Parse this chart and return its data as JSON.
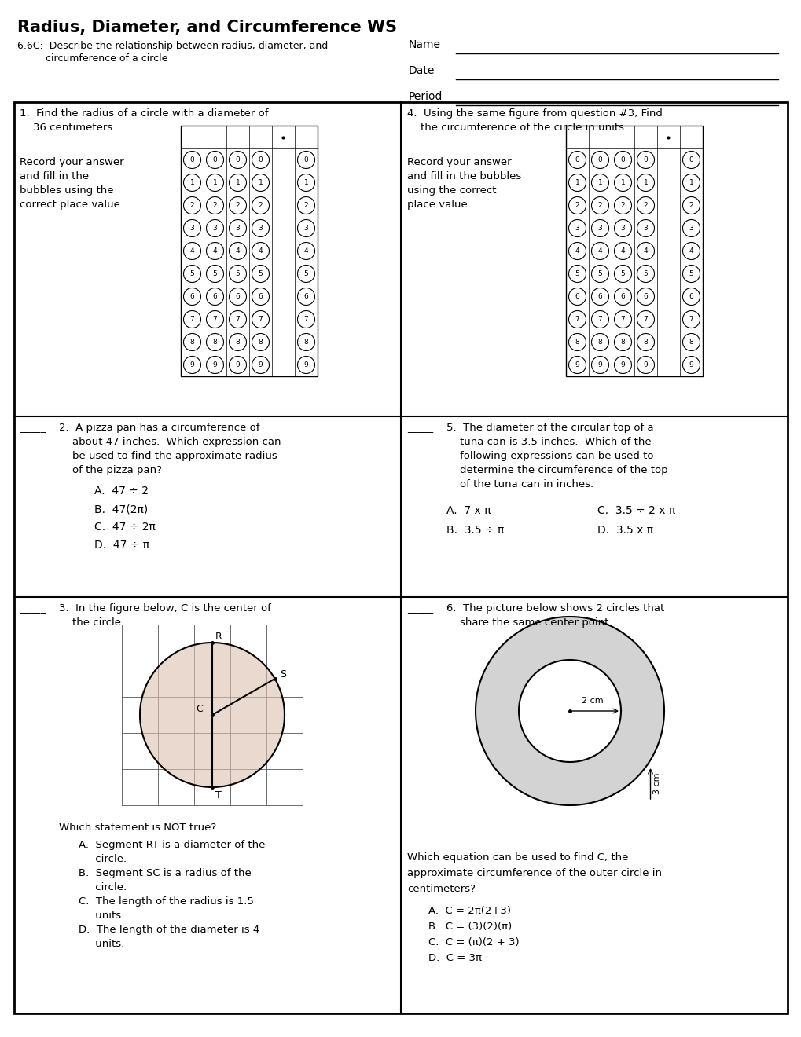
{
  "title": "Radius, Diameter, and Circumference WS",
  "subtitle_line1": "6.6C:  Describe the relationship between radius, diameter, and",
  "subtitle_line2": "         circumference of a circle",
  "bg_color": "#ffffff",
  "q1_line1": "1.  Find the radius of a circle with a diameter of",
  "q1_line2": "    36 centimeters.",
  "q1_line3": "Record your answer",
  "q1_line4": "and fill in the",
  "q1_line5": "bubbles using the",
  "q1_line6": "correct place value.",
  "q2_blank": "_____",
  "q2_line1": "2.  A pizza pan has a circumference of",
  "q2_line2": "    about 47 inches.  Which expression can",
  "q2_line3": "    be used to find the approximate radius",
  "q2_line4": "    of the pizza pan?",
  "q2_A": "A.  47 ÷ 2",
  "q2_B": "B.  47(2π)",
  "q2_C": "C.  47 ÷ 2π",
  "q2_D": "D.  47 ÷ π",
  "q3_blank": "_____",
  "q3_line1": "3.  In the figure below, C is the center of",
  "q3_line2": "    the circle.",
  "q3_which": "Which statement is NOT true?",
  "q3_A": "A.  Segment RT is a diameter of the",
  "q3_A2": "     circle.",
  "q3_B": "B.  Segment SC is a radius of the",
  "q3_B2": "     circle.",
  "q3_C": "C.  The length of the radius is 1.5",
  "q3_C2": "     units.",
  "q3_D": "D.  The length of the diameter is 4",
  "q3_D2": "     units.",
  "q4_line1": "4.  Using the same figure from question #3, Find",
  "q4_line2": "    the circumference of the circle in units.",
  "q4_line3": "Record your answer",
  "q4_line4": "and fill in the bubbles",
  "q4_line5": "using the correct",
  "q4_line6": "place value.",
  "q5_blank": "_____",
  "q5_line1": "5.  The diameter of the circular top of a",
  "q5_line2": "    tuna can is 3.5 inches.  Which of the",
  "q5_line3": "    following expressions can be used to",
  "q5_line4": "    determine the circumference of the top",
  "q5_line5": "    of the tuna can in inches.",
  "q5_A": "A.  7 x π",
  "q5_B": "B.  3.5 ÷ π",
  "q5_C": "C.  3.5 ÷ 2 x π",
  "q5_D": "D.  3.5 x π",
  "q6_blank": "_____",
  "q6_line1": "6.  The picture below shows 2 circles that",
  "q6_line2": "    share the same center point.",
  "q6_which": "Which equation can be used to find C, the",
  "q6_which2": "approximate circumference of the outer circle in",
  "q6_which3": "centimeters?",
  "q6_A": "A.  C = 2π(2+3)",
  "q6_B": "B.  C = (3)(2)(π)",
  "q6_C": "C.  C = (π)(2 + 3)",
  "q6_D": "D.  C = 3π"
}
